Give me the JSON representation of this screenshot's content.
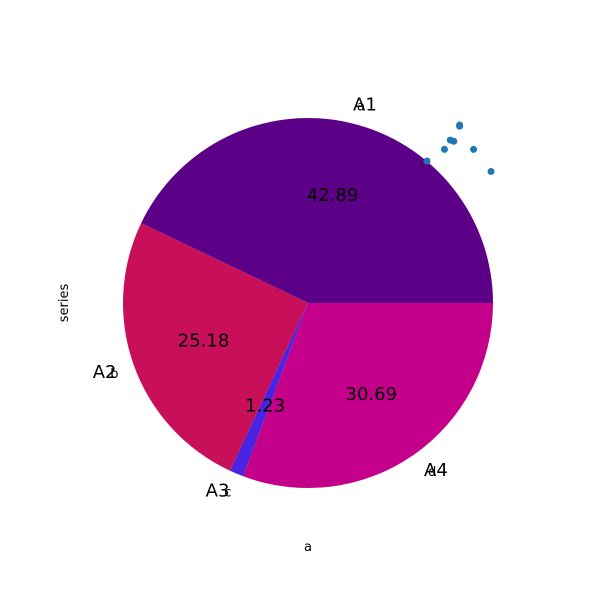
{
  "chart_data": {
    "type": "pie",
    "title": "",
    "xlabel": "a",
    "ylabel": "series",
    "categories": [
      "A1",
      "A2",
      "A3",
      "A4"
    ],
    "small_labels": [
      "a",
      "b",
      "c",
      "d"
    ],
    "values": [
      42.89,
      25.18,
      1.23,
      30.69
    ],
    "colors": [
      "#5c0087",
      "#c8105a",
      "#4a24e0",
      "#c4008a"
    ],
    "pct_labels": [
      "42.89",
      "25.18",
      "1.23",
      "30.69"
    ],
    "start_angle_deg": 0,
    "direction": "counterclockwise",
    "scatter_overlay": {
      "color": "#1f77b4",
      "points": [
        [
          0.2,
          0.45
        ],
        [
          0.35,
          0.55
        ],
        [
          0.4,
          0.63
        ],
        [
          0.43,
          0.62
        ],
        [
          0.48,
          0.76
        ],
        [
          0.48,
          0.75
        ],
        [
          0.6,
          0.55
        ],
        [
          0.75,
          0.36
        ]
      ]
    }
  }
}
